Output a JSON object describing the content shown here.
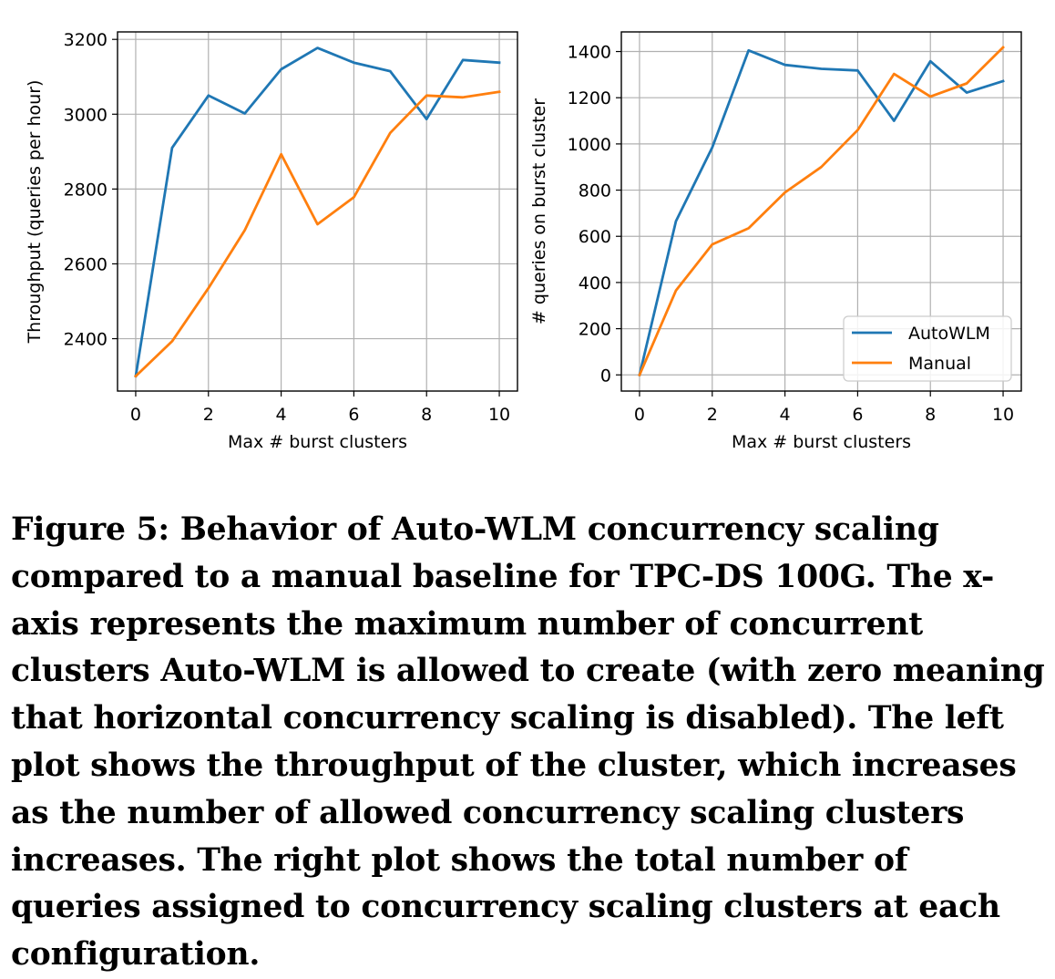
{
  "chart_data": [
    {
      "type": "line",
      "title": "",
      "xlabel": "Max # burst clusters",
      "ylabel": "Throughput (queries per hour)",
      "xlim": [
        -0.5,
        10.5
      ],
      "ylim": [
        2260,
        3220
      ],
      "xticks": [
        0,
        2,
        4,
        6,
        8,
        10
      ],
      "yticks": [
        2400,
        2600,
        2800,
        3000,
        3200
      ],
      "grid": true,
      "x": [
        0,
        1,
        2,
        3,
        4,
        5,
        6,
        7,
        8,
        9,
        10
      ],
      "series": [
        {
          "name": "AutoWLM",
          "color": "#1f77b4",
          "values": [
            2300,
            2910,
            3050,
            3002,
            3120,
            3177,
            3138,
            3115,
            2987,
            3145,
            3138
          ]
        },
        {
          "name": "Manual",
          "color": "#ff7f0e",
          "values": [
            2300,
            2393,
            2535,
            2690,
            2893,
            2706,
            2778,
            2950,
            3050,
            3045,
            3060
          ]
        }
      ],
      "legend": null
    },
    {
      "type": "line",
      "title": "",
      "xlabel": "Max # burst clusters",
      "ylabel": "# queries on burst cluster",
      "xlim": [
        -0.5,
        10.5
      ],
      "ylim": [
        -70,
        1485
      ],
      "xticks": [
        0,
        2,
        4,
        6,
        8,
        10
      ],
      "yticks": [
        0,
        200,
        400,
        600,
        800,
        1000,
        1200,
        1400
      ],
      "grid": true,
      "x": [
        0,
        1,
        2,
        3,
        4,
        5,
        6,
        7,
        8,
        9,
        10
      ],
      "series": [
        {
          "name": "AutoWLM",
          "color": "#1f77b4",
          "values": [
            0,
            665,
            985,
            1405,
            1342,
            1325,
            1318,
            1100,
            1358,
            1222,
            1272
          ]
        },
        {
          "name": "Manual",
          "color": "#ff7f0e",
          "values": [
            0,
            365,
            565,
            635,
            790,
            900,
            1060,
            1303,
            1205,
            1262,
            1418
          ]
        }
      ],
      "legend": "lower right"
    }
  ],
  "caption": "Figure 5: Behavior of Auto-WLM concurrency scaling compared to a manual baseline for TPC-DS 100G. The x-axis represents the maximum number of concurrent clusters Auto-WLM is allowed to create (with zero meaning that horizontal concurrency scaling is disabled). The left plot shows the throughput of the cluster, which increases as the number of allowed concurrency scaling clusters increases. The right plot shows the total number of queries assigned to concurrency scaling clusters at each configuration."
}
